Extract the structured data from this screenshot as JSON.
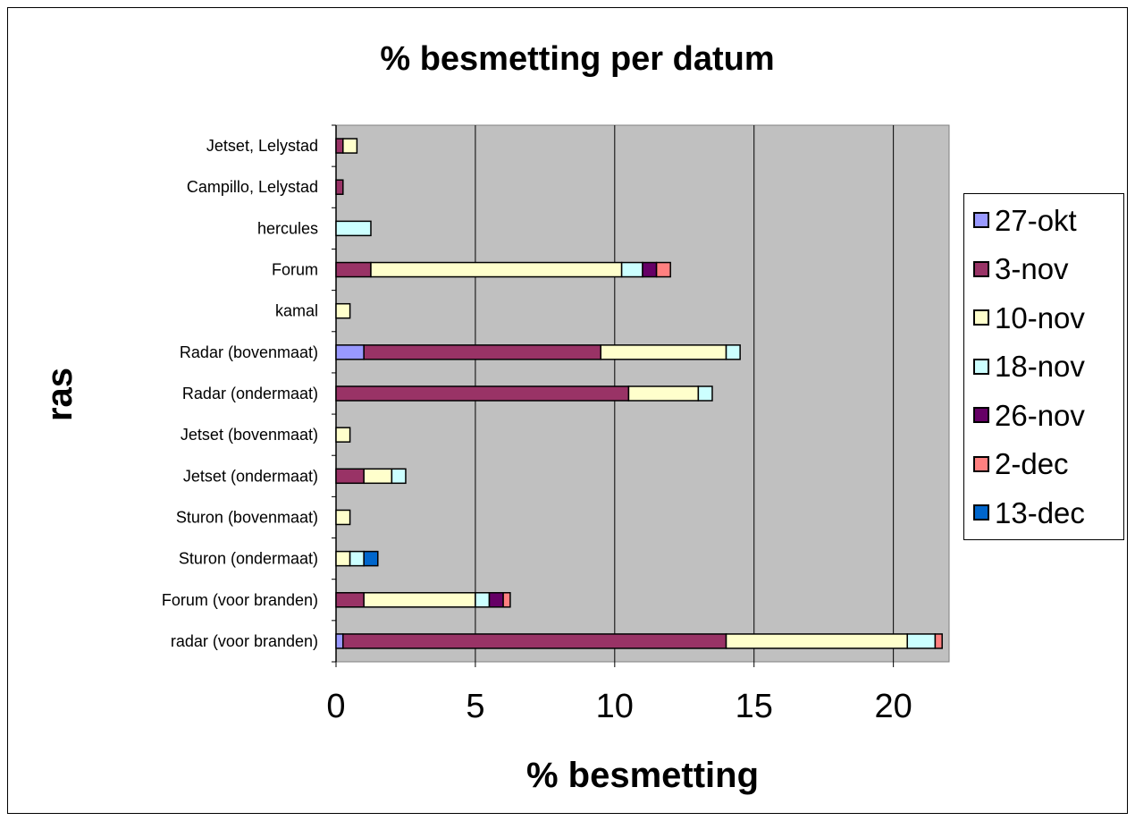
{
  "chart_data": {
    "type": "bar",
    "orientation": "horizontal",
    "stacked": true,
    "title": "% besmetting per datum",
    "xlabel": "% besmetting",
    "ylabel": "ras",
    "xlim": [
      0,
      22
    ],
    "xticks": [
      "0",
      "5",
      "10",
      "15",
      "20"
    ],
    "grid": true,
    "legend_position": "right",
    "categories": [
      "radar (voor branden)",
      "Forum (voor branden)",
      "Sturon (ondermaat)",
      "Sturon (bovenmaat)",
      "Jetset (ondermaat)",
      "Jetset (bovenmaat)",
      "Radar (ondermaat)",
      "Radar (bovenmaat)",
      "kamal",
      "Forum",
      "hercules",
      "Campillo, Lelystad",
      "Jetset, Lelystad"
    ],
    "series": [
      {
        "name": "27-okt",
        "color": "#9999FF",
        "values": [
          0.25,
          0,
          0,
          0,
          0,
          0,
          0,
          1.0,
          0,
          0,
          0,
          0,
          0
        ]
      },
      {
        "name": "3-nov",
        "color": "#993366",
        "values": [
          13.75,
          1.0,
          0,
          0,
          1.0,
          0,
          10.5,
          8.5,
          0,
          1.25,
          0,
          0.25,
          0.25
        ]
      },
      {
        "name": "10-nov",
        "color": "#FFFFCC",
        "values": [
          6.5,
          4.0,
          0.5,
          0.5,
          1.0,
          0.5,
          2.5,
          4.5,
          0.5,
          9.0,
          0,
          0,
          0.5
        ]
      },
      {
        "name": "18-nov",
        "color": "#CCFFFF",
        "values": [
          1.0,
          0.5,
          0.5,
          0,
          0.5,
          0,
          0.5,
          0.5,
          0,
          0.75,
          1.25,
          0,
          0
        ]
      },
      {
        "name": "26-nov",
        "color": "#660066",
        "values": [
          0,
          0.5,
          0,
          0,
          0,
          0,
          0,
          0,
          0,
          0.5,
          0,
          0,
          0
        ]
      },
      {
        "name": "2-dec",
        "color": "#FF8080",
        "values": [
          0.25,
          0.25,
          0,
          0,
          0,
          0,
          0,
          0,
          0,
          0.5,
          0,
          0,
          0
        ]
      },
      {
        "name": "13-dec",
        "color": "#0066CC",
        "values": [
          0,
          0,
          0.5,
          0,
          0,
          0,
          0,
          0,
          0,
          0,
          0,
          0,
          0
        ]
      }
    ],
    "plot_background": "#C0C0C0"
  }
}
